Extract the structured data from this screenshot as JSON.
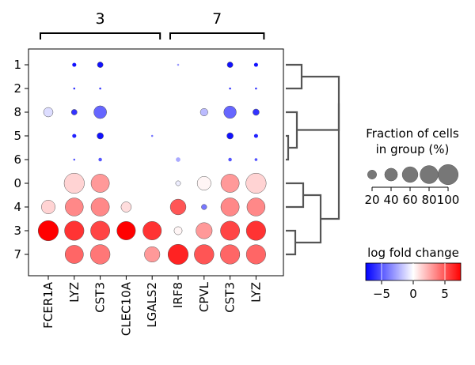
{
  "chart_data": {
    "type": "dotplot",
    "groups": [
      {
        "label": "3",
        "genes": [
          "FCER1A",
          "LYZ",
          "CST3",
          "CLEC10A",
          "LGALS2"
        ]
      },
      {
        "label": "7",
        "genes": [
          "IRF8",
          "CPVL",
          "CST3",
          "LYZ"
        ]
      }
    ],
    "columns": [
      "FCER1A",
      "LYZ",
      "CST3",
      "CLEC10A",
      "LGALS2",
      "IRF8",
      "CPVL",
      "CST3",
      "LYZ"
    ],
    "rows": [
      "1",
      "2",
      "8",
      "5",
      "6",
      "0",
      "4",
      "3",
      "7"
    ],
    "fraction_pct": [
      [
        0,
        4,
        8,
        0,
        0,
        1,
        0,
        8,
        4
      ],
      [
        0,
        1,
        1,
        0,
        0,
        0,
        0,
        1,
        1
      ],
      [
        22,
        8,
        40,
        0,
        0,
        0,
        14,
        38,
        10
      ],
      [
        0,
        4,
        10,
        0,
        1,
        0,
        0,
        10,
        4
      ],
      [
        1,
        1,
        3,
        0,
        0,
        5,
        1,
        3,
        2
      ],
      [
        1,
        100,
        82,
        0,
        1,
        6,
        46,
        82,
        100
      ],
      [
        46,
        80,
        82,
        26,
        0,
        60,
        7,
        82,
        80
      ],
      [
        100,
        92,
        90,
        84,
        84,
        16,
        64,
        90,
        92
      ],
      [
        0,
        82,
        94,
        0,
        58,
        100,
        94,
        92,
        92
      ]
    ],
    "log_fold_change": [
      [
        0,
        -7,
        -7,
        0,
        0,
        -3,
        0,
        -7,
        -7
      ],
      [
        0,
        -6,
        -6,
        0,
        0,
        0,
        0,
        -6,
        -6
      ],
      [
        -1,
        -6,
        -4.5,
        0,
        0,
        0,
        -2,
        -4.5,
        -6
      ],
      [
        0,
        -6.5,
        -7,
        0,
        -4,
        0,
        0,
        -7,
        -6.5
      ],
      [
        0,
        -5,
        -5,
        0,
        0,
        -2.5,
        0,
        -5,
        -5
      ],
      [
        0,
        1.3,
        3,
        0,
        0,
        -0.5,
        0.3,
        3,
        1.3
      ],
      [
        1.3,
        3.5,
        3.5,
        1,
        0,
        5,
        -4,
        3.5,
        3.5
      ],
      [
        7.5,
        6,
        5.5,
        7.5,
        6,
        0.3,
        3,
        5.5,
        6
      ],
      [
        0,
        4.5,
        4,
        0,
        3,
        6.5,
        5,
        4.5,
        4.5
      ]
    ],
    "size_legend": {
      "title_lines": [
        "Fraction of cells",
        "in group (%)"
      ],
      "values": [
        20,
        40,
        60,
        80,
        100
      ],
      "labels": [
        "20",
        "40",
        "60",
        "80",
        "100"
      ]
    },
    "color_legend": {
      "title": "log fold change",
      "range": [
        -7.5,
        7.5
      ],
      "ticks": [
        -5,
        0,
        5
      ],
      "tick_labels": [
        "−5",
        "0",
        "5"
      ],
      "colors": [
        "#0000ff",
        "#ffffff",
        "#ff0000"
      ]
    },
    "dendrogram": "hierarchical clustering of rows"
  }
}
